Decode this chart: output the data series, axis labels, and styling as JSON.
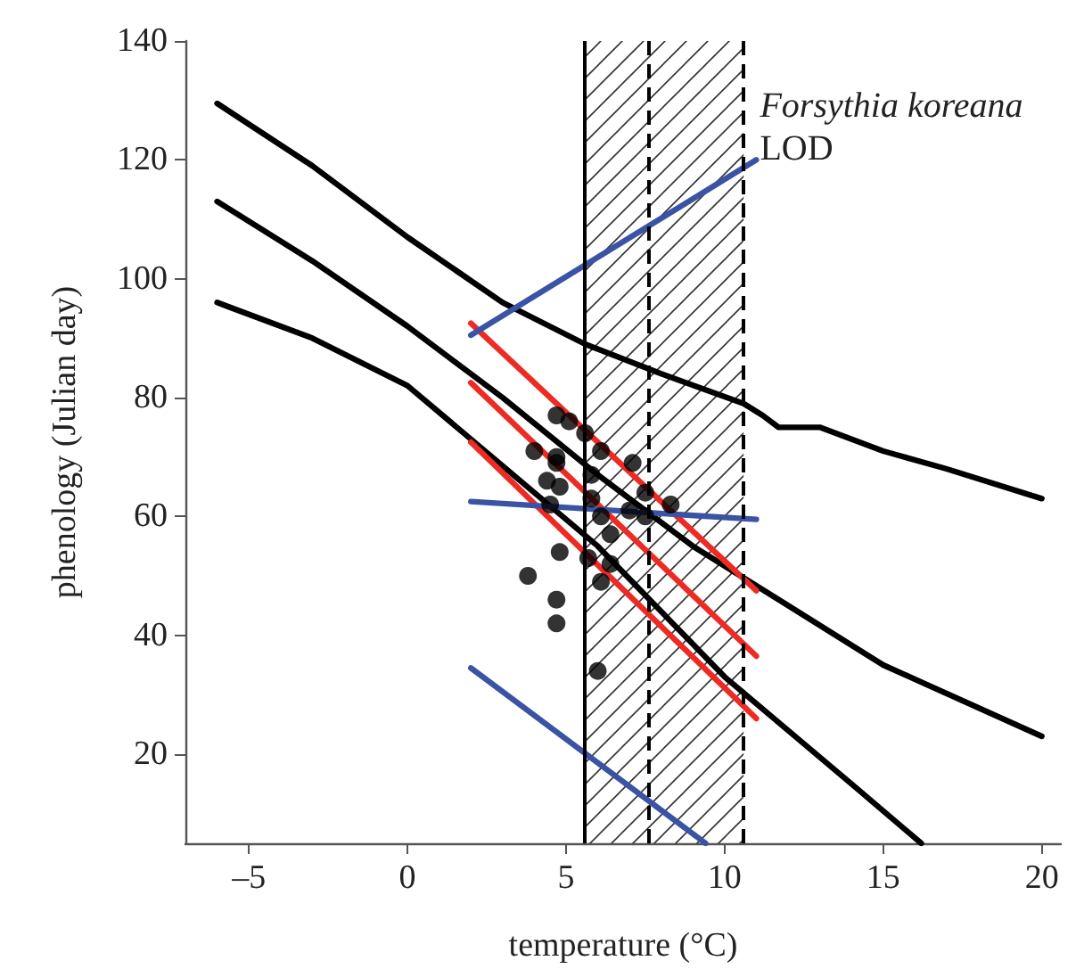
{
  "chart_data": {
    "type": "line",
    "xlabel": "temperature (°C)",
    "ylabel": "phenology (Julian day)",
    "xlim": [
      -7,
      20.6
    ],
    "ylim": [
      5,
      140
    ],
    "xticks": [
      {
        "value": -5,
        "label": "–5"
      },
      0,
      5,
      10,
      15,
      20
    ],
    "yticks": [
      20,
      40,
      60,
      80,
      100,
      120,
      140
    ],
    "grid": false,
    "marker": "none",
    "line_style": "solid",
    "series": [
      {
        "color": "#000000",
        "x": [
          -6,
          -3,
          0,
          3,
          5.6,
          8,
          10.6,
          11.2,
          11.7,
          13,
          15,
          17,
          20
        ],
        "values": [
          129.5,
          119,
          107,
          96,
          89,
          84,
          79,
          77,
          75,
          75,
          71,
          68,
          63
        ]
      },
      {
        "color": "#000000",
        "x": [
          -6,
          -3,
          0,
          3,
          6,
          9,
          12,
          15,
          20
        ],
        "values": [
          113,
          103,
          92,
          80,
          67,
          55,
          45,
          35,
          23
        ]
      },
      {
        "color": "#000000",
        "x": [
          -6,
          -3,
          0,
          2,
          4,
          6,
          8,
          10,
          12,
          14,
          16.2
        ],
        "values": [
          96,
          90,
          82,
          73,
          64,
          55,
          44,
          33,
          24,
          15,
          5
        ]
      },
      {
        "color": "#ee2a24",
        "x": [
          2,
          11
        ],
        "values": [
          92.5,
          47.5
        ]
      },
      {
        "color": "#ee2a24",
        "x": [
          2,
          11
        ],
        "values": [
          82.5,
          36.5
        ]
      },
      {
        "color": "#ee2a24",
        "x": [
          2,
          11
        ],
        "values": [
          72.5,
          26
        ]
      },
      {
        "color": "#3a53a4",
        "x": [
          2,
          11
        ],
        "values": [
          90.5,
          120
        ]
      },
      {
        "color": "#3a53a4",
        "x": [
          2,
          11
        ],
        "values": [
          62.5,
          59.5
        ]
      },
      {
        "color": "#3a53a4",
        "x": [
          2,
          9.4
        ],
        "values": [
          34.5,
          5
        ]
      },
      {
        "type": "scatter",
        "marker": "circle",
        "color": "#000000",
        "x": [
          4.7,
          5.1,
          5.6,
          6.1,
          4.0,
          4.7,
          4.7,
          7.1,
          5.8,
          4.4,
          4.8,
          5.8,
          7.5,
          8.3,
          6.1,
          7.0,
          7.5,
          4.5,
          6.4,
          4.8,
          5.7,
          6.4,
          3.8,
          6.1,
          4.7,
          4.7,
          6.0
        ],
        "values": [
          77,
          76,
          74,
          71,
          71,
          70,
          69,
          69,
          67,
          66,
          65,
          63,
          64,
          62,
          60,
          61,
          60,
          62,
          57,
          54,
          53,
          52,
          50,
          49,
          46,
          42,
          34
        ]
      }
    ],
    "bands": [
      {
        "axis": "x",
        "from": 5.6,
        "to": 10.6
      }
    ],
    "ref_lines": [
      {
        "axis": "x",
        "value": 5.6,
        "line_style": "solid",
        "color": "#000000"
      },
      {
        "axis": "x",
        "value": 7.6,
        "line_style": "dashed",
        "color": "#000000"
      },
      {
        "axis": "x",
        "value": 10.6,
        "line_style": "dashed",
        "color": "#000000"
      }
    ],
    "annotations": [
      {
        "text": "Forsythia koreana",
        "x": 11,
        "y": 120
      },
      {
        "text": "LOD",
        "x": 11,
        "y": 120
      }
    ]
  }
}
